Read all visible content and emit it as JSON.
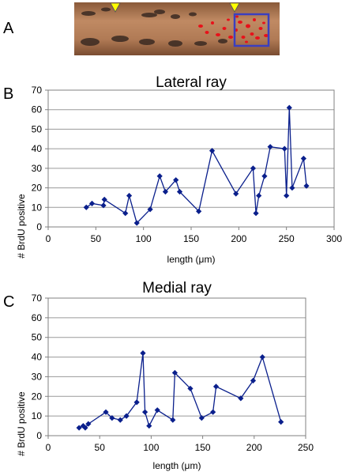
{
  "panels": {
    "a": "A",
    "b": "B",
    "c": "C"
  },
  "micrograph": {
    "tissue_color": "#b07a55",
    "label_color": "#e8111a",
    "box_color": "#3b3fbf",
    "marker_color": "#ffff00",
    "marker_icon": "downward-triangle"
  },
  "chart_data": [
    {
      "type": "line",
      "title": "Lateral ray",
      "xlabel": "length (μm)",
      "ylabel": "# BrdU positive",
      "xlim": [
        0,
        300
      ],
      "ylim": [
        0,
        70
      ],
      "x_ticks": [
        0,
        50,
        100,
        150,
        200,
        250,
        300
      ],
      "y_ticks": [
        0,
        10,
        20,
        30,
        40,
        50,
        60,
        70
      ],
      "grid": true,
      "color": "#0a1f8c",
      "series": [
        {
          "x": [
            40,
            46,
            58,
            59,
            81,
            85,
            93,
            107,
            117,
            123,
            134,
            138,
            158,
            172,
            197,
            215,
            218,
            221,
            227,
            233,
            248,
            250,
            253,
            256,
            268,
            271
          ],
          "y": [
            10,
            12,
            11,
            14,
            7,
            16,
            2,
            9,
            26,
            18,
            24,
            18,
            8,
            39,
            17,
            30,
            7,
            16,
            26,
            41,
            40,
            16,
            61,
            20,
            35,
            21
          ]
        }
      ]
    },
    {
      "type": "line",
      "title": "Medial ray",
      "xlabel": "length (μm)",
      "ylabel": "# BrdU positive",
      "xlim": [
        0,
        250
      ],
      "ylim": [
        0,
        70
      ],
      "x_ticks": [
        0,
        50,
        100,
        150,
        200,
        250
      ],
      "y_ticks": [
        0,
        10,
        20,
        30,
        40,
        50,
        60,
        70
      ],
      "grid": true,
      "color": "#0a1f8c",
      "series": [
        {
          "x": [
            30,
            34,
            36,
            39,
            56,
            62,
            70,
            76,
            86,
            92,
            94,
            98,
            106,
            121,
            123,
            138,
            149,
            160,
            163,
            187,
            199,
            208,
            226
          ],
          "y": [
            4,
            5,
            4,
            6,
            12,
            9,
            8,
            10,
            17,
            42,
            12,
            5,
            13,
            8,
            32,
            24,
            9,
            12,
            25,
            19,
            28,
            40,
            7
          ]
        }
      ]
    }
  ]
}
